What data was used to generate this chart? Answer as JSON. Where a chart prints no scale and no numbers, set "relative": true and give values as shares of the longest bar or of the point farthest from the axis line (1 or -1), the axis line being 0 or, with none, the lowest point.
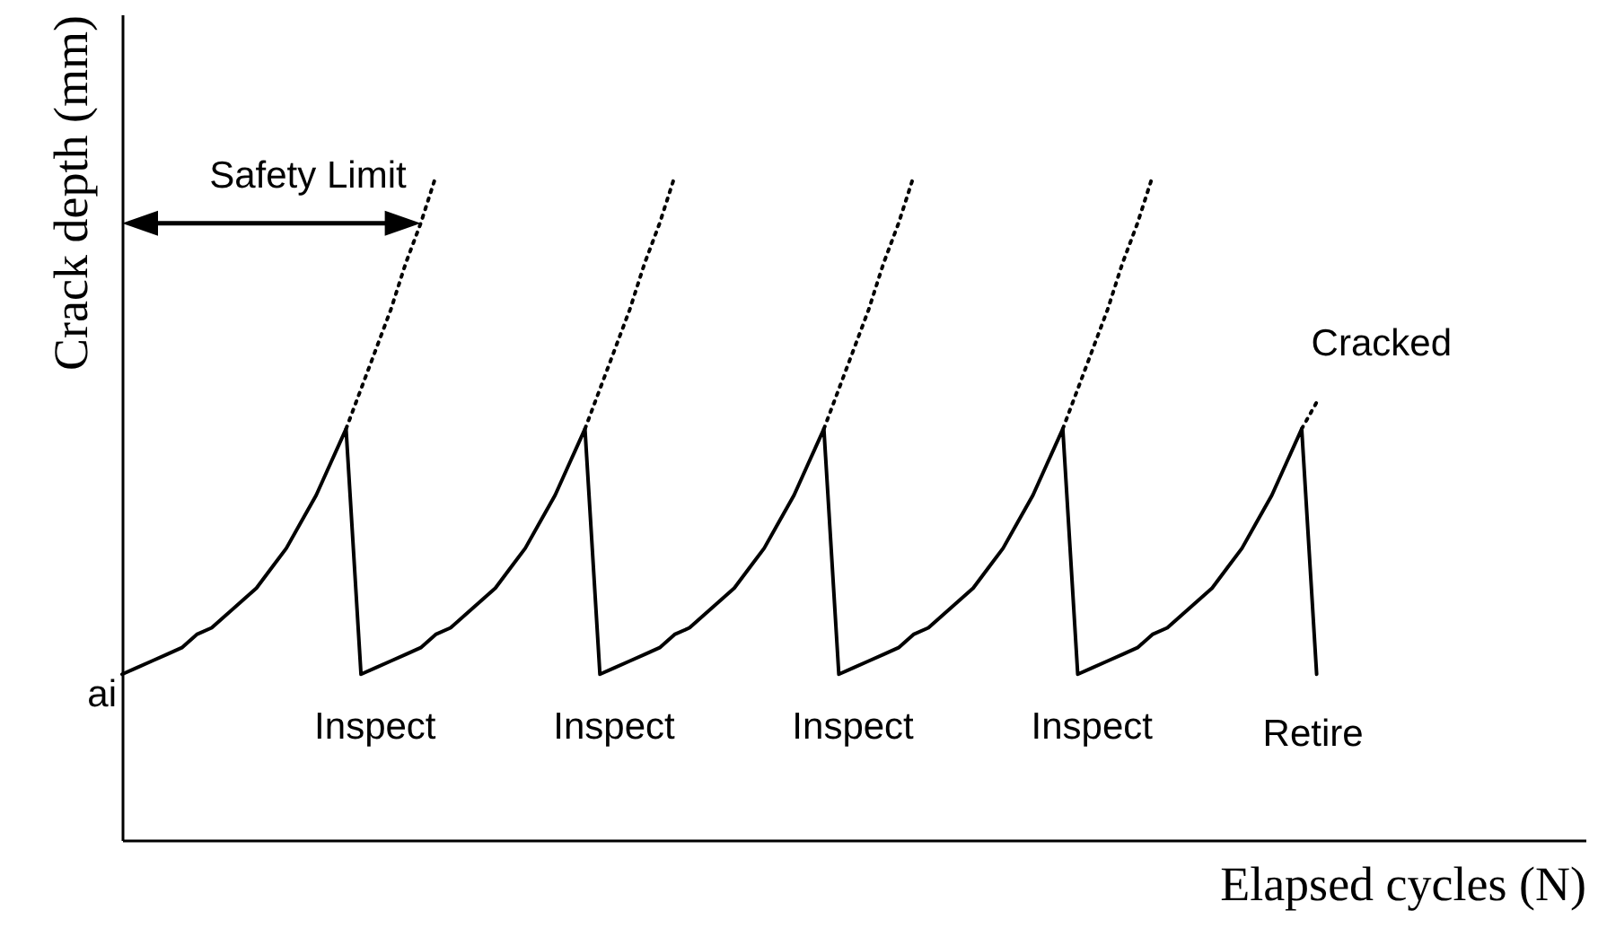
{
  "chart_data": {
    "type": "line",
    "relative": true,
    "xlabel": "Elapsed cycles  (N)",
    "ylabel": "Crack depth  (mm)",
    "categories": [
      null,
      null,
      null,
      null,
      null,
      null,
      null,
      null,
      null,
      null,
      null,
      null,
      null,
      null,
      null,
      null,
      null,
      null,
      null,
      null,
      null,
      null,
      null,
      null,
      null,
      null,
      null,
      null,
      null,
      null,
      null,
      null,
      null,
      null,
      null,
      null,
      null,
      null,
      null,
      null,
      null,
      null,
      null,
      null,
      null,
      null,
      null,
      null,
      null,
      null,
      null,
      null,
      null,
      null,
      null,
      null,
      null,
      null,
      null,
      null,
      null,
      null,
      null,
      null,
      null,
      null,
      null,
      null,
      null,
      null,
      null,
      null,
      null,
      null,
      null,
      null,
      null,
      null,
      null,
      null,
      null,
      null,
      null,
      null,
      null,
      null,
      null,
      null,
      null,
      null,
      null,
      null,
      null,
      null,
      null,
      null,
      null,
      null,
      null
    ],
    "tick_labels": false,
    "grid": false,
    "series": [
      {
        "color": "#000000",
        "line_style": "solid",
        "values": [
          0.25,
          0.26,
          0.27,
          0.28,
          0.29,
          0.31,
          0.32,
          0.34,
          0.36,
          0.38,
          0.41,
          0.44,
          0.48,
          0.52,
          0.57,
          0.62,
          0.25,
          0.26,
          0.27,
          0.28,
          0.29,
          0.31,
          0.32,
          0.34,
          0.36,
          0.38,
          0.41,
          0.44,
          0.48,
          0.52,
          0.57,
          0.62,
          0.25,
          0.26,
          0.27,
          0.28,
          0.29,
          0.31,
          0.32,
          0.34,
          0.36,
          0.38,
          0.41,
          0.44,
          0.48,
          0.52,
          0.57,
          0.62,
          0.25,
          0.26,
          0.27,
          0.28,
          0.29,
          0.31,
          0.32,
          0.34,
          0.36,
          0.38,
          0.41,
          0.44,
          0.48,
          0.52,
          0.57,
          0.62,
          0.25,
          0.26,
          0.27,
          0.28,
          0.29,
          0.31,
          0.32,
          0.34,
          0.36,
          0.38,
          0.41,
          0.44,
          0.48,
          0.52,
          0.57,
          0.62,
          0.25,
          null,
          null,
          null,
          null,
          null,
          null,
          null,
          null,
          null,
          null,
          null,
          null,
          null,
          null,
          null,
          null,
          null,
          null
        ]
      },
      {
        "color": "#000000",
        "line_style": "dotted",
        "values": [
          null,
          null,
          null,
          null,
          null,
          null,
          null,
          null,
          null,
          null,
          null,
          null,
          null,
          null,
          null,
          0.62,
          0.68,
          0.74,
          0.8,
          0.87,
          0.93,
          1.0,
          null,
          null,
          null,
          null,
          null,
          null,
          null,
          null,
          null,
          null,
          null,
          null,
          null,
          null,
          null,
          null,
          null,
          null,
          null,
          null,
          null,
          null,
          null,
          null,
          null,
          null,
          null,
          null,
          null,
          null,
          null,
          null,
          null,
          null,
          null,
          null,
          null,
          null,
          null,
          null,
          null,
          null,
          null,
          null,
          null,
          null,
          null,
          null,
          null,
          null,
          null,
          null,
          null,
          null,
          null,
          null,
          null,
          null,
          null,
          null,
          null,
          null,
          null,
          null,
          null,
          null,
          null,
          null,
          null,
          null,
          null,
          null,
          null,
          null,
          null,
          null,
          null
        ]
      },
      {
        "color": "#000000",
        "line_style": "dotted",
        "values": [
          null,
          null,
          null,
          null,
          null,
          null,
          null,
          null,
          null,
          null,
          null,
          null,
          null,
          null,
          null,
          null,
          null,
          null,
          null,
          null,
          null,
          null,
          null,
          null,
          null,
          null,
          null,
          null,
          null,
          null,
          null,
          0.62,
          0.68,
          0.74,
          0.8,
          0.87,
          0.93,
          1.0,
          null,
          null,
          null,
          null,
          null,
          null,
          null,
          null,
          null,
          null,
          null,
          null,
          null,
          null,
          null,
          null,
          null,
          null,
          null,
          null,
          null,
          null,
          null,
          null,
          null,
          null,
          null,
          null,
          null,
          null,
          null,
          null,
          null,
          null,
          null,
          null,
          null,
          null,
          null,
          null,
          null,
          null,
          null,
          null,
          null,
          null,
          null,
          null,
          null,
          null,
          null,
          null,
          null,
          null,
          null,
          null,
          null,
          null,
          null,
          null,
          null
        ]
      },
      {
        "color": "#000000",
        "line_style": "dotted",
        "values": [
          null,
          null,
          null,
          null,
          null,
          null,
          null,
          null,
          null,
          null,
          null,
          null,
          null,
          null,
          null,
          null,
          null,
          null,
          null,
          null,
          null,
          null,
          null,
          null,
          null,
          null,
          null,
          null,
          null,
          null,
          null,
          null,
          null,
          null,
          null,
          null,
          null,
          null,
          null,
          null,
          null,
          null,
          null,
          null,
          null,
          null,
          null,
          0.62,
          0.68,
          0.74,
          0.8,
          0.87,
          0.93,
          1.0,
          null,
          null,
          null,
          null,
          null,
          null,
          null,
          null,
          null,
          null,
          null,
          null,
          null,
          null,
          null,
          null,
          null,
          null,
          null,
          null,
          null,
          null,
          null,
          null,
          null,
          null,
          null,
          null,
          null,
          null,
          null,
          null,
          null,
          null,
          null,
          null,
          null,
          null,
          null,
          null,
          null,
          null,
          null,
          null,
          null
        ]
      },
      {
        "color": "#000000",
        "line_style": "dotted",
        "values": [
          null,
          null,
          null,
          null,
          null,
          null,
          null,
          null,
          null,
          null,
          null,
          null,
          null,
          null,
          null,
          null,
          null,
          null,
          null,
          null,
          null,
          null,
          null,
          null,
          null,
          null,
          null,
          null,
          null,
          null,
          null,
          null,
          null,
          null,
          null,
          null,
          null,
          null,
          null,
          null,
          null,
          null,
          null,
          null,
          null,
          null,
          null,
          null,
          null,
          null,
          null,
          null,
          null,
          null,
          null,
          null,
          null,
          null,
          null,
          null,
          null,
          null,
          null,
          0.62,
          0.68,
          0.74,
          0.8,
          0.87,
          0.93,
          1.0,
          null,
          null,
          null,
          null,
          null,
          null,
          null,
          null,
          null,
          null,
          null,
          null,
          null,
          null,
          null,
          null,
          null,
          null,
          null,
          null,
          null,
          null,
          null,
          null,
          null,
          null,
          null,
          null,
          null
        ]
      },
      {
        "color": "#000000",
        "line_style": "dotted",
        "values": [
          null,
          null,
          null,
          null,
          null,
          null,
          null,
          null,
          null,
          null,
          null,
          null,
          null,
          null,
          null,
          null,
          null,
          null,
          null,
          null,
          null,
          null,
          null,
          null,
          null,
          null,
          null,
          null,
          null,
          null,
          null,
          null,
          null,
          null,
          null,
          null,
          null,
          null,
          null,
          null,
          null,
          null,
          null,
          null,
          null,
          null,
          null,
          null,
          null,
          null,
          null,
          null,
          null,
          null,
          null,
          null,
          null,
          null,
          null,
          null,
          null,
          null,
          null,
          null,
          null,
          null,
          null,
          null,
          null,
          null,
          null,
          null,
          null,
          null,
          null,
          null,
          null,
          null,
          null,
          0.62,
          0.66,
          null,
          null,
          null,
          null,
          null,
          null,
          null,
          null,
          null,
          null,
          null,
          null,
          null,
          null,
          null,
          null,
          null,
          null
        ]
      }
    ],
    "annotations": [
      "ai",
      "Safety Limit",
      "Inspect",
      "Inspect",
      "Inspect",
      "Inspect",
      "Retire",
      "Cracked"
    ]
  }
}
